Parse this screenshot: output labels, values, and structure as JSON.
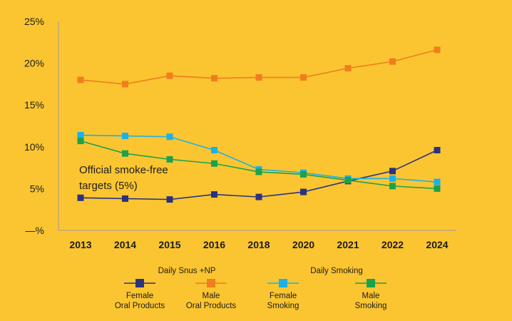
{
  "chart_data": {
    "type": "line",
    "x": [
      "2013",
      "2014",
      "2015",
      "2016",
      "2018",
      "2020",
      "2021",
      "2022",
      "2024"
    ],
    "y_ticks": [
      "—%",
      "5%",
      "10%",
      "15%",
      "20%",
      "25%"
    ],
    "y_tick_values": [
      0,
      5,
      10,
      15,
      20,
      25
    ],
    "ylim": [
      0,
      25
    ],
    "grid": false,
    "legend_position": "bottom",
    "annotation": [
      "Official smoke-free",
      "targets (5%)"
    ],
    "legend_groups": [
      {
        "title": "Daily Snus +NP"
      },
      {
        "title": "Daily Smoking"
      }
    ],
    "series": [
      {
        "name": "Female Oral Products",
        "legend_lines": [
          "Female",
          "Oral Products"
        ],
        "color": "#2B3280",
        "values": [
          3.9,
          3.8,
          3.7,
          4.3,
          4.0,
          4.6,
          5.9,
          7.1,
          9.6
        ]
      },
      {
        "name": "Male Oral Products",
        "legend_lines": [
          "Male",
          "Oral Products"
        ],
        "color": "#F07D1E",
        "values": [
          18.0,
          17.5,
          18.5,
          18.2,
          18.3,
          18.3,
          19.4,
          20.2,
          21.6
        ]
      },
      {
        "name": "Female Smoking",
        "legend_lines": [
          "Female",
          "Smoking"
        ],
        "color": "#1BB1E8",
        "values": [
          11.4,
          11.3,
          11.2,
          9.6,
          7.3,
          6.9,
          6.2,
          6.2,
          5.8
        ]
      },
      {
        "name": "Male Smoking",
        "legend_lines": [
          "Male",
          "Smoking"
        ],
        "color": "#1BA24B",
        "values": [
          10.7,
          9.2,
          8.5,
          8.0,
          7.0,
          6.7,
          6.0,
          5.3,
          5.0
        ]
      }
    ]
  }
}
